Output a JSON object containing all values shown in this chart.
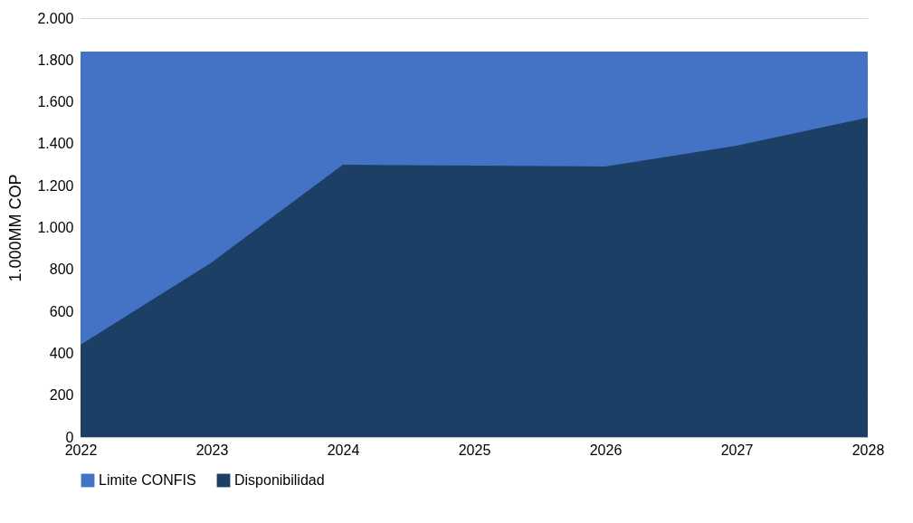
{
  "chart_data": {
    "type": "area",
    "ylabel": "1.000MM COP",
    "x": [
      2022,
      2023,
      2024,
      2025,
      2026,
      2027,
      2028
    ],
    "series": [
      {
        "name": "Limite CONFIS",
        "color": "#4472c4",
        "values": [
          1840,
          1840,
          1840,
          1840,
          1840,
          1840,
          1840
        ]
      },
      {
        "name": "Disponibilidad",
        "color": "#1c3f66",
        "values": [
          441,
          834,
          1300,
          1296,
          1292,
          1391,
          1525
        ]
      }
    ],
    "xlim": [
      2022,
      2028
    ],
    "xticks": [
      2022,
      2023,
      2024,
      2025,
      2026,
      2027,
      2028
    ],
    "ylim": [
      0,
      2000
    ],
    "yticks": [
      {
        "value": 0,
        "label": "0"
      },
      {
        "value": 200,
        "label": "200"
      },
      {
        "value": 400,
        "label": "400"
      },
      {
        "value": 600,
        "label": "600"
      },
      {
        "value": 800,
        "label": "800"
      },
      {
        "value": 1000,
        "label": "1.000"
      },
      {
        "value": 1200,
        "label": "1.200"
      },
      {
        "value": 1400,
        "label": "1.400"
      },
      {
        "value": 1600,
        "label": "1.600"
      },
      {
        "value": 1800,
        "label": "1.800"
      },
      {
        "value": 2000,
        "label": "2.000"
      }
    ],
    "grid": "y",
    "legend": "bottom"
  }
}
